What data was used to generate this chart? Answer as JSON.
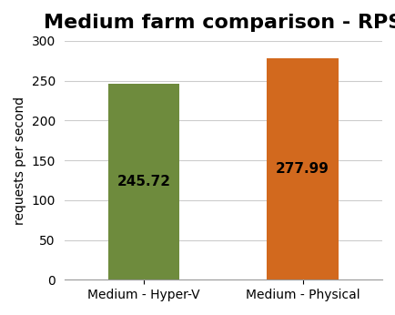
{
  "title": "Medium farm comparison - RPS",
  "categories": [
    "Medium - Hyper-V",
    "Medium - Physical"
  ],
  "values": [
    245.72,
    277.99
  ],
  "bar_colors": [
    "#6e8b3d",
    "#d2691e"
  ],
  "bar_labels": [
    "245.72",
    "277.99"
  ],
  "ylabel": "requests per second",
  "ylim": [
    0,
    300
  ],
  "yticks": [
    0,
    50,
    100,
    150,
    200,
    250,
    300
  ],
  "background_color": "#ffffff",
  "title_fontsize": 16,
  "label_fontsize": 11,
  "tick_fontsize": 10,
  "ylabel_fontsize": 10
}
